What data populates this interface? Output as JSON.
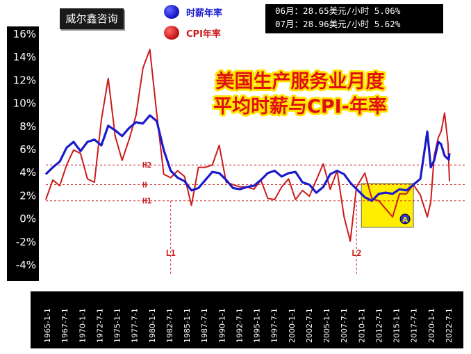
{
  "header": {
    "brand": "威尔鑫咨询",
    "legend": [
      {
        "label": "时薪年率",
        "color": "#1a1acc",
        "icon": "blue-dot-icon"
      },
      {
        "label": "CPI年率",
        "color": "#cc1a1a",
        "icon": "red-dot-icon"
      }
    ],
    "info_lines": [
      "06月：28.65美元/小时 5.06%",
      "07月：28.96美元/小时 5.62%"
    ]
  },
  "chart_data": {
    "type": "line",
    "title": [
      "美国生产服务业月度",
      "平均时薪与CPI-年率"
    ],
    "y_ticks": [
      "16%",
      "14%",
      "12%",
      "10%",
      "8%",
      "6%",
      "4%",
      "2%",
      "0%",
      "-2%",
      "-4%"
    ],
    "ylim": [
      -4,
      16
    ],
    "x_ticks": [
      "1965-1-1",
      "1967-7-1",
      "1970-1-1",
      "1972-7-1",
      "1975-1-1",
      "1977-7-1",
      "1980-1-1",
      "1982-7-1",
      "1985-1-1",
      "1987-7-1",
      "1990-1-1",
      "1992-7-1",
      "1995-1-1",
      "1997-7-1",
      "2000-1-1",
      "2002-7-1",
      "2005-1-1",
      "2007-7-1",
      "2010-1-1",
      "2012-7-1",
      "2015-1-1",
      "2017-7-1",
      "2020-1-1",
      "2022-7-1"
    ],
    "xlim": [
      1965,
      2023.5
    ],
    "reference_lines": [
      {
        "label": "H2",
        "value": 4.6
      },
      {
        "label": "H",
        "value": 2.9
      },
      {
        "label": "H1",
        "value": 1.5
      }
    ],
    "vertical_markers": [
      {
        "label": "L1",
        "x": 1983.0
      },
      {
        "label": "L2",
        "x": 2009.8
      }
    ],
    "highlight": {
      "label": "A",
      "x_range": [
        2010.5,
        2018.0
      ],
      "y_range": [
        -0.8,
        3.0
      ],
      "color": "#ffee00"
    },
    "series": [
      {
        "name": "时薪年率",
        "color": "#1a1acc",
        "points": [
          [
            1965,
            3.8
          ],
          [
            1966,
            4.4
          ],
          [
            1967,
            4.9
          ],
          [
            1968,
            6.1
          ],
          [
            1969,
            6.6
          ],
          [
            1970,
            5.8
          ],
          [
            1971,
            6.6
          ],
          [
            1972,
            6.8
          ],
          [
            1973,
            6.3
          ],
          [
            1974,
            8.0
          ],
          [
            1975,
            7.6
          ],
          [
            1976,
            7.1
          ],
          [
            1977,
            7.8
          ],
          [
            1978,
            8.3
          ],
          [
            1979,
            8.2
          ],
          [
            1980,
            8.9
          ],
          [
            1981,
            8.4
          ],
          [
            1982,
            5.9
          ],
          [
            1983,
            4.1
          ],
          [
            1984,
            3.5
          ],
          [
            1985,
            3.2
          ],
          [
            1986,
            2.4
          ],
          [
            1987,
            2.6
          ],
          [
            1988,
            3.3
          ],
          [
            1989,
            4.0
          ],
          [
            1990,
            3.9
          ],
          [
            1991,
            3.3
          ],
          [
            1992,
            2.6
          ],
          [
            1993,
            2.5
          ],
          [
            1994,
            2.7
          ],
          [
            1995,
            2.8
          ],
          [
            1996,
            3.3
          ],
          [
            1997,
            3.9
          ],
          [
            1998,
            4.1
          ],
          [
            1999,
            3.6
          ],
          [
            2000,
            3.9
          ],
          [
            2001,
            4.0
          ],
          [
            2002,
            3.1
          ],
          [
            2003,
            2.9
          ],
          [
            2004,
            2.2
          ],
          [
            2005,
            2.7
          ],
          [
            2006,
            3.8
          ],
          [
            2007,
            4.1
          ],
          [
            2008,
            3.8
          ],
          [
            2009,
            3.0
          ],
          [
            2010,
            2.4
          ],
          [
            2011,
            1.8
          ],
          [
            2012,
            1.5
          ],
          [
            2013,
            2.1
          ],
          [
            2014,
            2.2
          ],
          [
            2015,
            2.1
          ],
          [
            2016,
            2.5
          ],
          [
            2017,
            2.4
          ],
          [
            2018,
            2.9
          ],
          [
            2019,
            3.4
          ],
          [
            2020,
            7.5
          ],
          [
            2020.5,
            4.4
          ],
          [
            2021,
            5.0
          ],
          [
            2021.6,
            6.6
          ],
          [
            2022,
            6.4
          ],
          [
            2022.5,
            5.4
          ],
          [
            2023.1,
            5.06
          ],
          [
            2023.2,
            5.62
          ]
        ]
      },
      {
        "name": "CPI年率",
        "color": "#cc1a1a",
        "points": [
          [
            1965,
            1.6
          ],
          [
            1966,
            3.3
          ],
          [
            1967,
            2.8
          ],
          [
            1968,
            4.6
          ],
          [
            1969,
            5.9
          ],
          [
            1970,
            5.6
          ],
          [
            1971,
            3.4
          ],
          [
            1972,
            3.1
          ],
          [
            1973,
            8.5
          ],
          [
            1974,
            12.1
          ],
          [
            1975,
            7.1
          ],
          [
            1976,
            5.0
          ],
          [
            1977,
            6.8
          ],
          [
            1978,
            8.9
          ],
          [
            1979,
            13.0
          ],
          [
            1980,
            14.6
          ],
          [
            1981,
            9.0
          ],
          [
            1982,
            3.8
          ],
          [
            1983,
            3.5
          ],
          [
            1984,
            4.1
          ],
          [
            1985,
            3.6
          ],
          [
            1986,
            1.1
          ],
          [
            1987,
            4.4
          ],
          [
            1988,
            4.4
          ],
          [
            1989,
            4.6
          ],
          [
            1990,
            6.3
          ],
          [
            1991,
            3.1
          ],
          [
            1992,
            2.9
          ],
          [
            1993,
            2.7
          ],
          [
            1994,
            2.7
          ],
          [
            1995,
            2.5
          ],
          [
            1996,
            3.3
          ],
          [
            1997,
            1.7
          ],
          [
            1998,
            1.6
          ],
          [
            1999,
            2.7
          ],
          [
            2000,
            3.4
          ],
          [
            2001,
            1.6
          ],
          [
            2002,
            2.4
          ],
          [
            2003,
            1.9
          ],
          [
            2004,
            3.3
          ],
          [
            2005,
            4.7
          ],
          [
            2006,
            2.5
          ],
          [
            2007,
            4.1
          ],
          [
            2008,
            0.1
          ],
          [
            2008.9,
            -2.0
          ],
          [
            2009.8,
            2.7
          ],
          [
            2011,
            3.9
          ],
          [
            2012,
            1.7
          ],
          [
            2013,
            1.5
          ],
          [
            2014,
            0.8
          ],
          [
            2015,
            0.1
          ],
          [
            2016,
            2.1
          ],
          [
            2017,
            2.1
          ],
          [
            2018,
            2.9
          ],
          [
            2019,
            2.0
          ],
          [
            2020,
            0.1
          ],
          [
            2020.5,
            1.4
          ],
          [
            2021,
            5.4
          ],
          [
            2021.6,
            7.0
          ],
          [
            2022,
            7.5
          ],
          [
            2022.5,
            9.1
          ],
          [
            2023,
            6.4
          ],
          [
            2023.2,
            3.2
          ]
        ]
      }
    ]
  }
}
